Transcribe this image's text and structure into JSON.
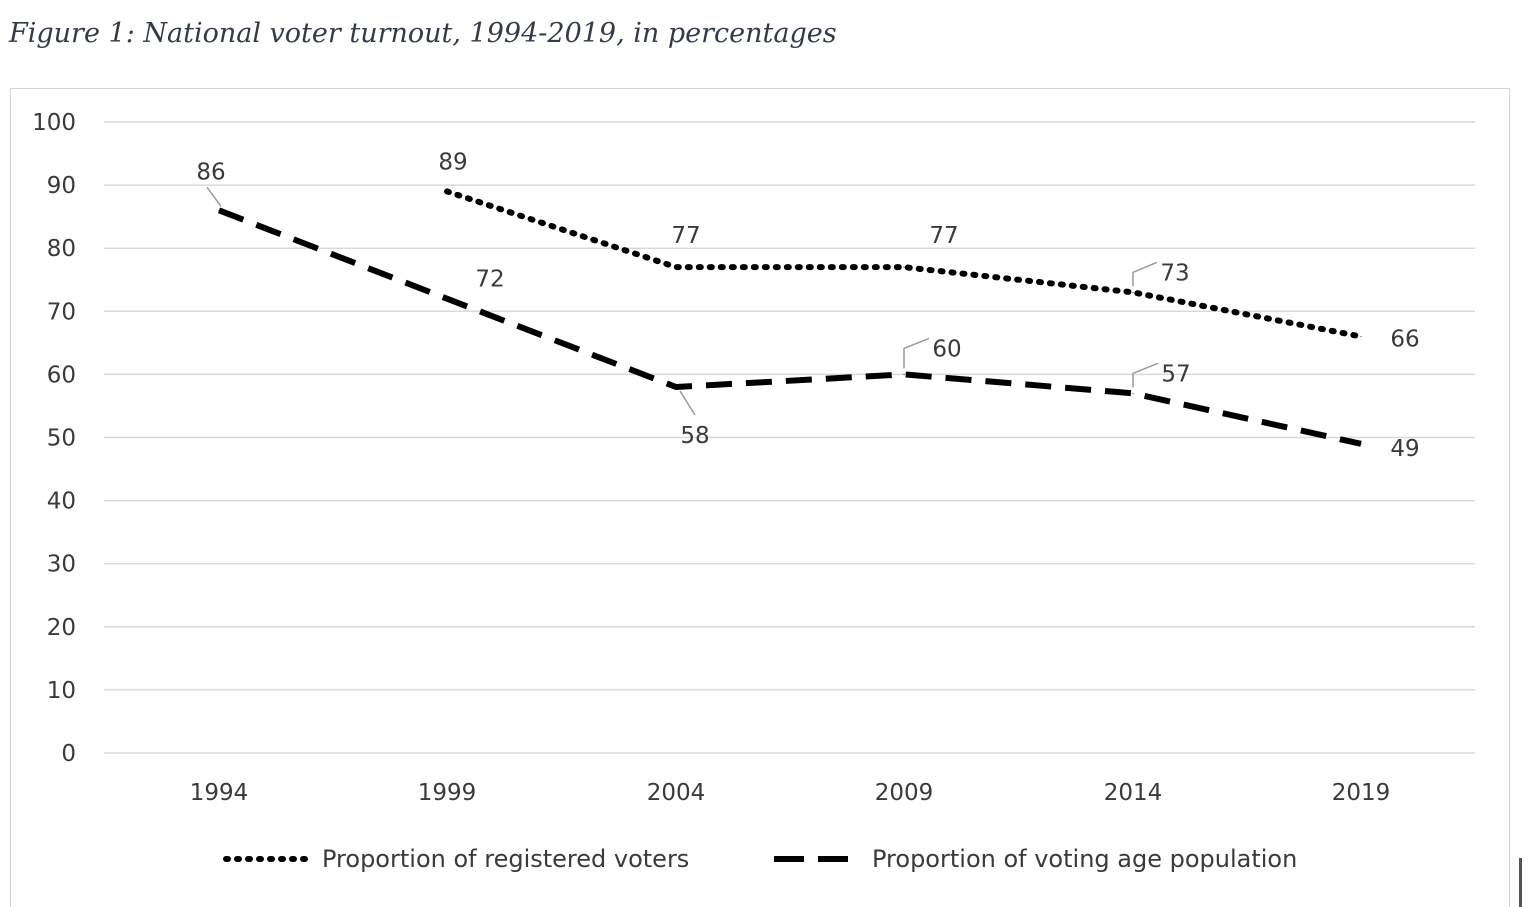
{
  "figure": {
    "title": "Figure 1: National voter turnout, 1994-2019, in percentages"
  },
  "chart_data": {
    "type": "line",
    "title": "",
    "xlabel": "",
    "ylabel": "",
    "categories": [
      "1994",
      "1999",
      "2004",
      "2009",
      "2014",
      "2019"
    ],
    "ylim": [
      0,
      100
    ],
    "yticks": [
      0,
      10,
      20,
      30,
      40,
      50,
      60,
      70,
      80,
      90,
      100
    ],
    "grid": true,
    "legend_position": "bottom",
    "series": [
      {
        "name": "Proportion of registered voters",
        "style": "dotted",
        "color": "#000000",
        "values": [
          null,
          89,
          77,
          77,
          73,
          66
        ],
        "labels": [
          "",
          "89",
          "77",
          "77",
          "73",
          "66"
        ]
      },
      {
        "name": "Proportion of voting age population",
        "style": "dashed",
        "color": "#000000",
        "values": [
          86,
          72,
          58,
          60,
          57,
          49
        ],
        "labels": [
          "86",
          "72",
          "58",
          "60",
          "57",
          "49"
        ]
      }
    ]
  },
  "colors": {
    "grid": "#d9d9d9",
    "text": "#3a3a3a",
    "leader_line": "#9a9a9a"
  }
}
